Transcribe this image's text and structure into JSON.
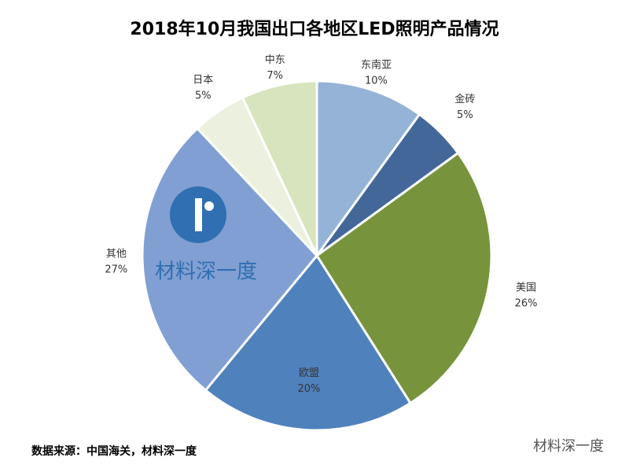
{
  "chart_data": {
    "type": "pie",
    "title": "2018年10月我国出口各地区LED照明产品情况",
    "categories": [
      "东南亚",
      "金砖",
      "美国",
      "欧盟",
      "其他",
      "日本",
      "中东"
    ],
    "values": [
      10,
      5,
      26,
      20,
      27,
      5,
      7
    ],
    "value_labels": [
      "10%",
      "5%",
      "26%",
      "20%",
      "27%",
      "5%",
      "7%"
    ],
    "colors": [
      "#95b3d7",
      "#44679a",
      "#77933c",
      "#4f81bd",
      "#819fd2",
      "#ebf1de",
      "#d7e4bd"
    ]
  },
  "source": "数据来源：中国海关，材料深一度",
  "logo_text": "材料深一度",
  "watermark": "材料深一度"
}
